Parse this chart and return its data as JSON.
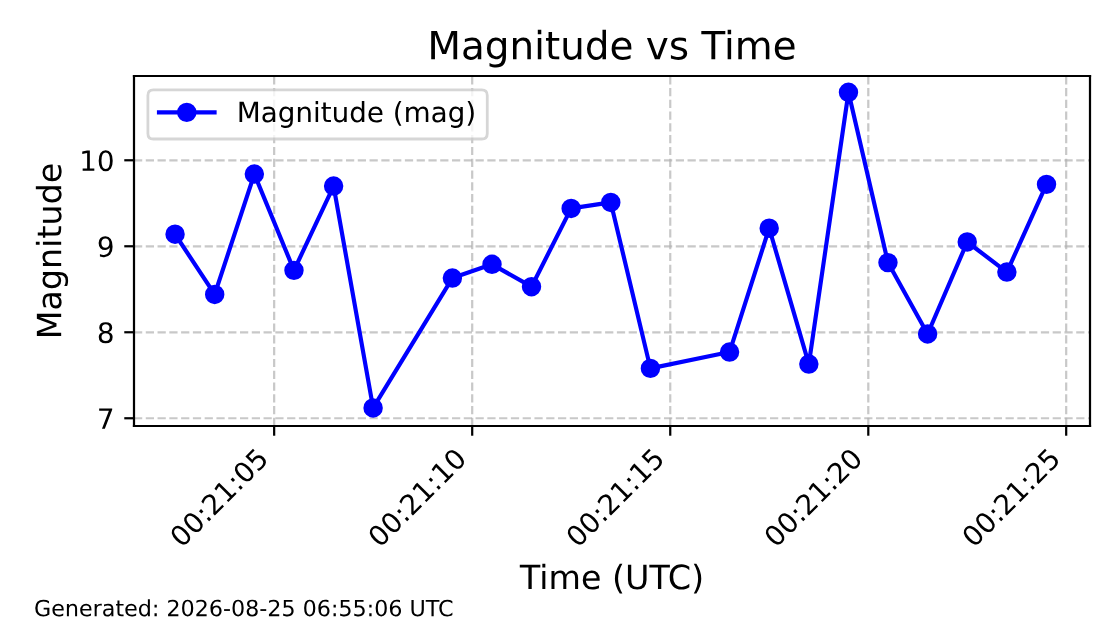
{
  "chart_data": {
    "type": "line",
    "title": "Magnitude vs Time",
    "xlabel": "Time (UTC)",
    "ylabel": "Magnitude",
    "x": [
      0.350694,
      0.350972,
      0.35125,
      0.351528,
      0.351806,
      0.352083,
      0.352639,
      0.352917,
      0.353194,
      0.353472,
      0.35375,
      0.354028,
      0.354583,
      0.354861,
      0.355139,
      0.355417,
      0.355694,
      0.355972,
      0.35625,
      0.356528,
      0.356806
    ],
    "series": [
      {
        "name": "Magnitude (mag)",
        "color": "#0000ff",
        "values": [
          9.14,
          8.44,
          9.84,
          8.72,
          9.7,
          7.12,
          8.63,
          8.79,
          8.53,
          9.44,
          9.51,
          7.58,
          7.77,
          9.21,
          7.63,
          10.79,
          8.81,
          7.98,
          9.05,
          8.7,
          9.72
        ]
      }
    ],
    "xlim": [
      0.350406,
      0.357111
    ],
    "xticks": [
      {
        "value": 0.351389,
        "label": "00:21:05"
      },
      {
        "value": 0.352778,
        "label": "00:21:10"
      },
      {
        "value": 0.354167,
        "label": "00:21:15"
      },
      {
        "value": 0.355556,
        "label": "00:21:20"
      },
      {
        "value": 0.356944,
        "label": "00:21:25"
      }
    ],
    "ylim": [
      6.91,
      10.98
    ],
    "yticks": [
      7,
      8,
      9,
      10
    ],
    "grid": true,
    "legend": "top left",
    "marker": "circle",
    "line_style": "solid",
    "annotations": [
      "Generated: 2026-08-25 06:55:06 UTC"
    ]
  }
}
